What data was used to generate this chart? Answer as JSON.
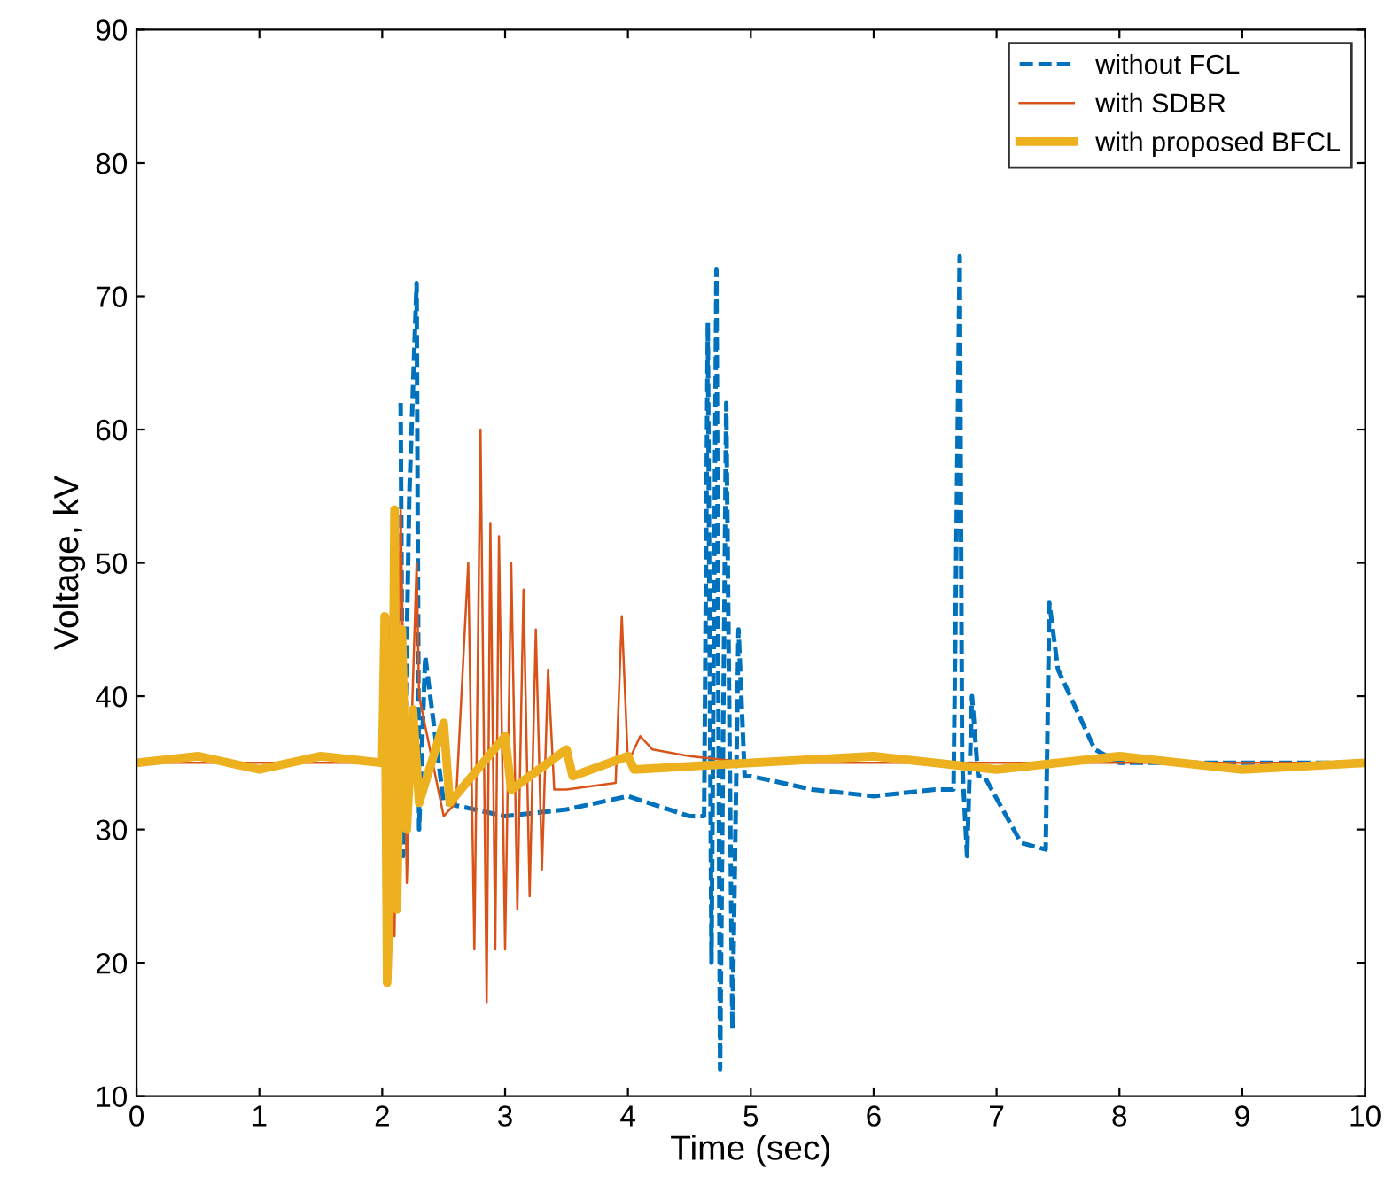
{
  "chart_data": {
    "type": "line",
    "xlabel": "Time (sec)",
    "ylabel": "Voltage, kV",
    "xlim": [
      0,
      10
    ],
    "ylim": [
      10,
      90
    ],
    "xticks": [
      0,
      1,
      2,
      3,
      4,
      5,
      6,
      7,
      8,
      9,
      10
    ],
    "yticks": [
      10,
      20,
      30,
      40,
      50,
      60,
      70,
      80,
      90
    ],
    "grid": false,
    "legend": "top right",
    "series": [
      {
        "name": "without FCL",
        "color": "#0072bd",
        "line_style": "dashed",
        "x": [
          2.15,
          2.17,
          2.22,
          2.28,
          2.3,
          2.35,
          2.5,
          3.0,
          3.5,
          4.0,
          4.5,
          4.62,
          4.65,
          4.68,
          4.72,
          4.75,
          4.8,
          4.85,
          4.9,
          4.95,
          5.0,
          5.5,
          6.0,
          6.5,
          6.65,
          6.7,
          6.72,
          6.76,
          6.8,
          6.85,
          6.9,
          7.2,
          7.4,
          7.43,
          7.5,
          7.8,
          8.0,
          10
        ],
        "values": [
          62,
          28,
          55,
          71,
          30,
          43,
          32,
          31,
          31.5,
          32.5,
          31,
          31,
          68,
          20,
          72,
          12,
          62,
          15,
          45,
          34,
          34,
          33,
          32.5,
          33,
          33,
          73,
          35,
          28,
          40,
          34,
          34,
          29,
          28.5,
          47,
          42,
          36,
          35,
          35
        ]
      },
      {
        "name": "with SDBR",
        "color": "#d95319",
        "line_style": "solid",
        "x": [
          0,
          1,
          2.0,
          2.05,
          2.1,
          2.15,
          2.2,
          2.28,
          2.3,
          2.5,
          2.6,
          2.7,
          2.75,
          2.8,
          2.85,
          2.88,
          2.92,
          2.95,
          3.0,
          3.05,
          3.1,
          3.15,
          3.2,
          3.25,
          3.3,
          3.35,
          3.4,
          3.5,
          3.9,
          3.95,
          4.0,
          4.1,
          4.2,
          4.5,
          5,
          10
        ],
        "values": [
          35,
          35,
          35,
          46,
          22,
          54,
          26,
          50,
          40,
          31,
          32,
          50,
          21,
          60,
          17,
          53,
          21,
          52,
          21,
          50,
          24,
          48,
          25,
          45,
          27,
          42,
          33,
          33,
          33.5,
          46,
          35,
          37,
          36,
          35.5,
          35,
          35
        ]
      },
      {
        "name": "with proposed BFCL",
        "color": "#edb120",
        "line_style": "solid",
        "x": [
          0,
          0.5,
          1,
          1.5,
          2.0,
          2.02,
          2.04,
          2.08,
          2.1,
          2.12,
          2.16,
          2.2,
          2.25,
          2.3,
          2.5,
          2.55,
          3.0,
          3.05,
          3.5,
          3.55,
          4,
          4.05,
          5,
          6,
          7,
          8,
          9,
          10
        ],
        "values": [
          35,
          35.5,
          34.5,
          35.5,
          35,
          46,
          18.5,
          30,
          54,
          24,
          45,
          30,
          39,
          32,
          38,
          32,
          37,
          33,
          36,
          34,
          35.5,
          34.5,
          35,
          35.5,
          34.5,
          35.5,
          34.5,
          35
        ]
      }
    ]
  }
}
